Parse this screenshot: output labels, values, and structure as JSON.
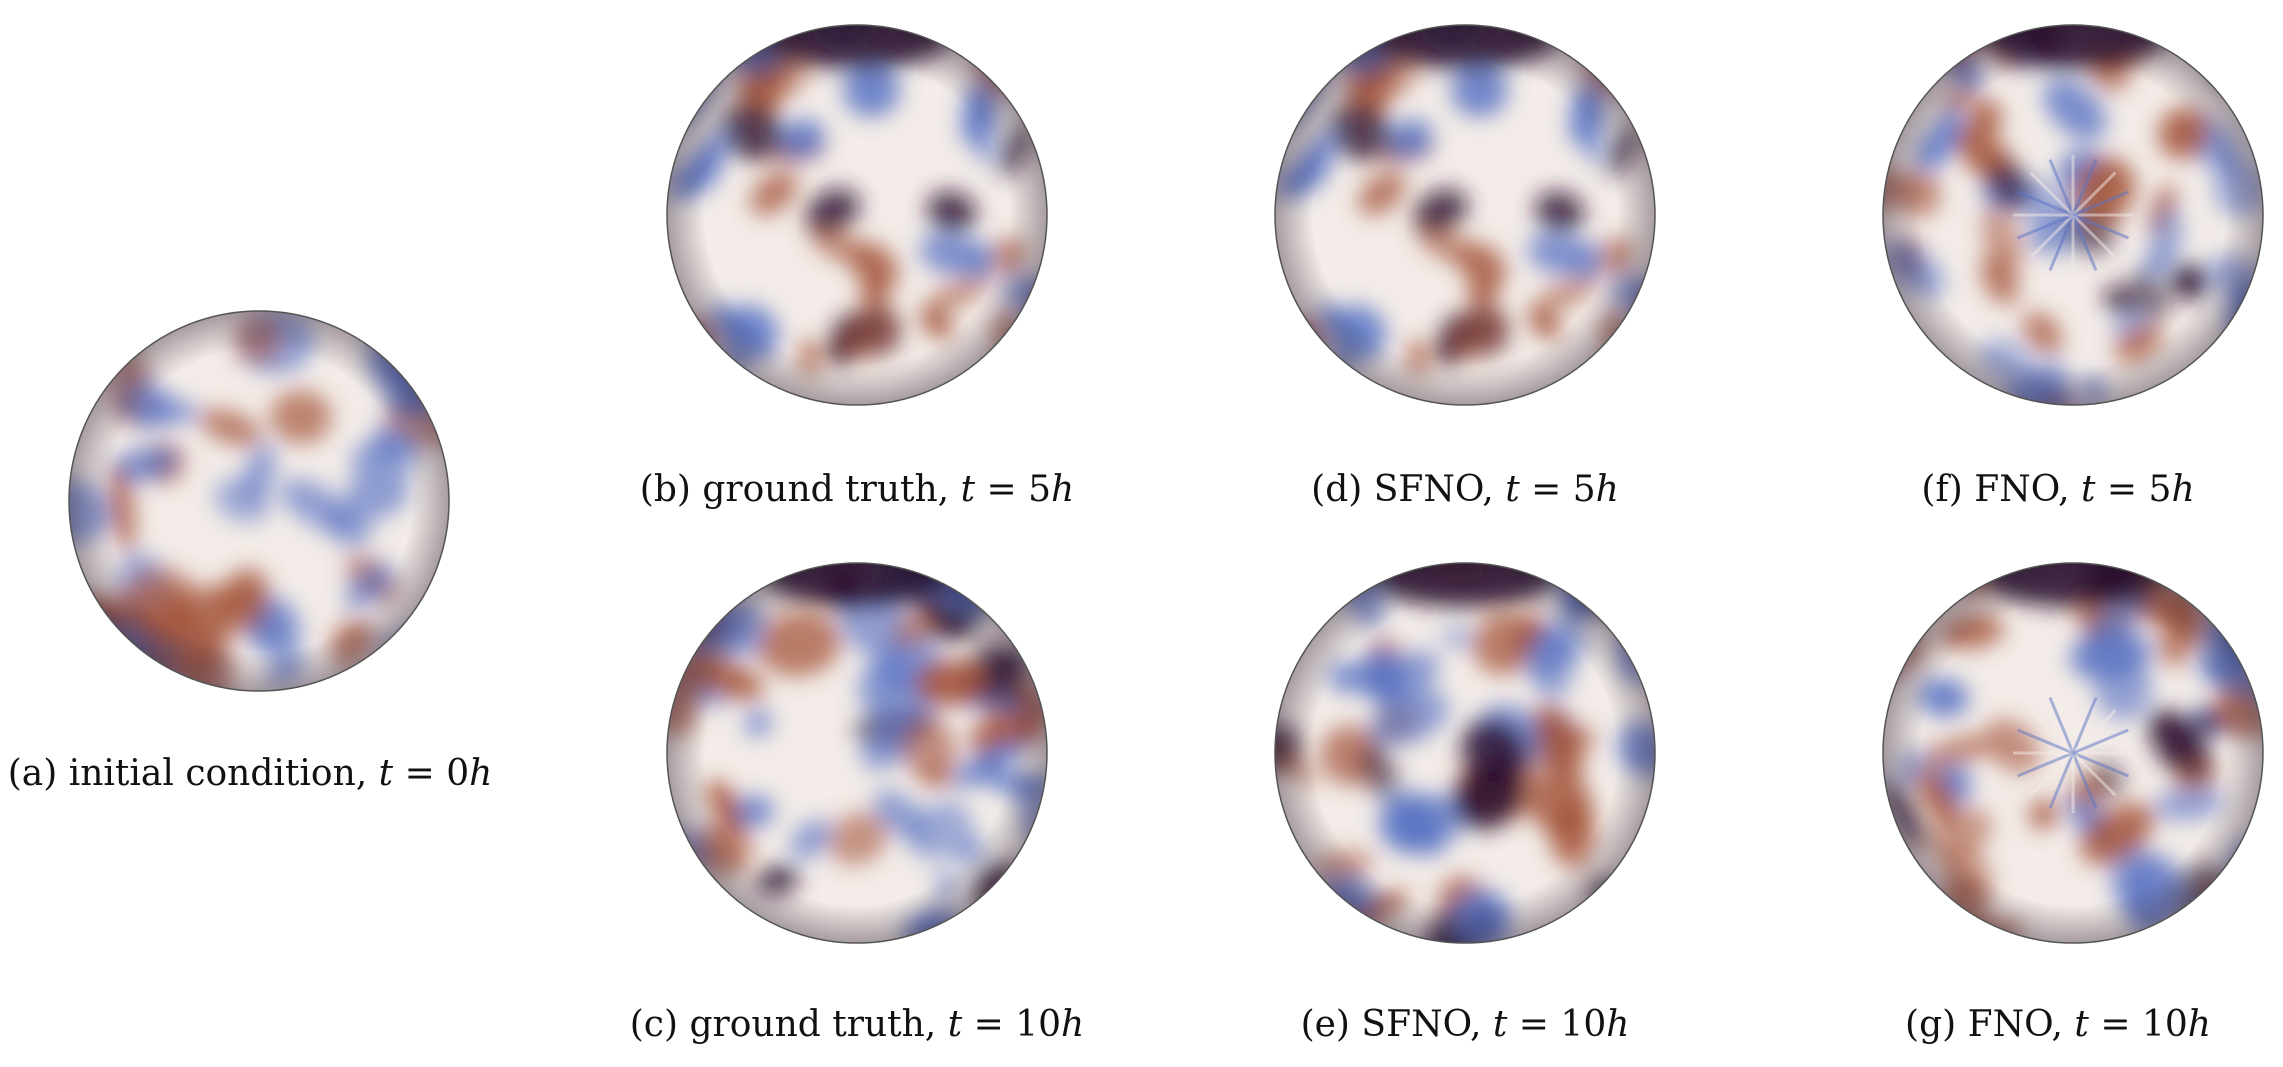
{
  "panels": [
    {
      "id": "a",
      "letter": "(a)",
      "label": "initial condition,",
      "var": "t",
      "eq": "=",
      "val": "0",
      "unit": "h",
      "seed": 11,
      "darkness": 0.55,
      "swirl": false,
      "scale": 1.0
    },
    {
      "id": "b",
      "letter": "(b)",
      "label": "ground truth,",
      "var": "t",
      "eq": "=",
      "val": "5",
      "unit": "h",
      "seed": 23,
      "darkness": 1.0,
      "swirl": false,
      "scale": 0.8
    },
    {
      "id": "c",
      "letter": "(c)",
      "label": "ground truth,",
      "var": "t",
      "eq": "=",
      "val": "10",
      "unit": "h",
      "seed": 37,
      "darkness": 1.0,
      "swirl": false,
      "scale": 0.9
    },
    {
      "id": "d",
      "letter": "(d)",
      "label": "SFNO,",
      "var": "t",
      "eq": "=",
      "val": "5",
      "unit": "h",
      "seed": 23,
      "darkness": 0.95,
      "swirl": false,
      "scale": 0.8
    },
    {
      "id": "e",
      "letter": "(e)",
      "label": "SFNO,",
      "var": "t",
      "eq": "=",
      "val": "10",
      "unit": "h",
      "seed": 41,
      "darkness": 0.95,
      "swirl": false,
      "scale": 0.9
    },
    {
      "id": "f",
      "letter": "(f)",
      "label": "FNO,",
      "var": "t",
      "eq": "=",
      "val": "5",
      "unit": "h",
      "seed": 29,
      "darkness": 0.9,
      "swirl": true,
      "scale": 0.8
    },
    {
      "id": "g",
      "letter": "(g)",
      "label": "FNO,",
      "var": "t",
      "eq": "=",
      "val": "10",
      "unit": "h",
      "seed": 53,
      "darkness": 0.9,
      "swirl": true,
      "scale": 0.9
    }
  ],
  "colors": {
    "dark_purple": "#2b0f2e",
    "blue": "#5a74c4",
    "light": "#f3ece8",
    "red_brown": "#a4543a",
    "outline": "#555555"
  }
}
